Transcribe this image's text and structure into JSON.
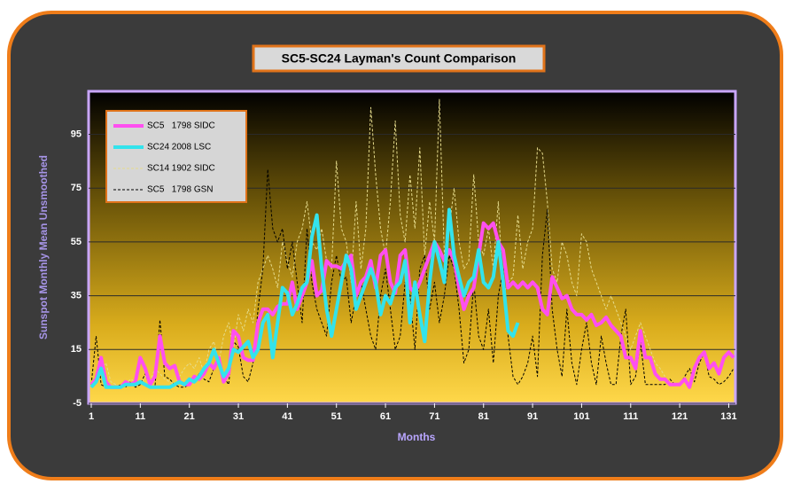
{
  "chart_data": {
    "type": "line",
    "title": "SC5-SC24 Layman's Count Comparison",
    "x_label": "Months",
    "y_label": "Sunspot Monthly Mean Unsmoothed",
    "xlim": [
      1,
      132
    ],
    "xticks": [
      1,
      11,
      21,
      31,
      41,
      51,
      61,
      71,
      81,
      91,
      101,
      111,
      121,
      131
    ],
    "ylim": [
      -5,
      111
    ],
    "yticks": [
      -5,
      15,
      35,
      55,
      75,
      95
    ],
    "grid": true,
    "legend_position": "upper-left",
    "x": [
      1,
      2,
      3,
      4,
      5,
      6,
      7,
      8,
      9,
      10,
      11,
      12,
      13,
      14,
      15,
      16,
      17,
      18,
      19,
      20,
      21,
      22,
      23,
      24,
      25,
      26,
      27,
      28,
      29,
      30,
      31,
      32,
      33,
      34,
      35,
      36,
      37,
      38,
      39,
      40,
      41,
      42,
      43,
      44,
      45,
      46,
      47,
      48,
      49,
      50,
      51,
      52,
      53,
      54,
      55,
      56,
      57,
      58,
      59,
      60,
      61,
      62,
      63,
      64,
      65,
      66,
      67,
      68,
      69,
      70,
      71,
      72,
      73,
      74,
      75,
      76,
      77,
      78,
      79,
      80,
      81,
      82,
      83,
      84,
      85,
      86,
      87,
      88,
      89,
      90,
      91,
      92,
      93,
      94,
      95,
      96,
      97,
      98,
      99,
      100,
      101,
      102,
      103,
      104,
      105,
      106,
      107,
      108,
      109,
      110,
      111,
      112,
      113,
      114,
      115,
      116,
      117,
      118,
      119,
      120,
      121,
      122,
      123,
      124,
      125,
      126,
      127,
      128,
      129,
      130,
      131,
      132
    ],
    "series": [
      {
        "name": "SC5   1798 SIDC",
        "color": "#ff4ff0",
        "width": 4,
        "style": "solid",
        "values": [
          2,
          4,
          12,
          3,
          1,
          1,
          1,
          3,
          2,
          3,
          12,
          8,
          2,
          5,
          20,
          10,
          8,
          9,
          3,
          2,
          2,
          5,
          4,
          6,
          10,
          8,
          12,
          3,
          6,
          22,
          20,
          12,
          11,
          11,
          25,
          30,
          30,
          28,
          31,
          32,
          32,
          40,
          30,
          35,
          40,
          48,
          35,
          37,
          48,
          46,
          46,
          45,
          48,
          50,
          35,
          40,
          42,
          48,
          38,
          50,
          52,
          40,
          36,
          50,
          52,
          38,
          36,
          40,
          45,
          50,
          55,
          52,
          48,
          52,
          48,
          38,
          30,
          35,
          38,
          50,
          62,
          60,
          62,
          55,
          52,
          38,
          40,
          38,
          40,
          38,
          40,
          38,
          30,
          28,
          42,
          38,
          34,
          35,
          30,
          28,
          28,
          26,
          28,
          24,
          25,
          27,
          24,
          22,
          20,
          12,
          12,
          8,
          22,
          12,
          12,
          6,
          4,
          4,
          2,
          2,
          2,
          4,
          1,
          8,
          12,
          14,
          8,
          10,
          6,
          12,
          14,
          12
        ]
      },
      {
        "name": "SC24 2008 LSC",
        "color": "#33e3ec",
        "width": 4,
        "style": "solid",
        "values": [
          1,
          3,
          8,
          1,
          1,
          1,
          1,
          2,
          2,
          2,
          3,
          2,
          1,
          1,
          1,
          1,
          1,
          2,
          3,
          2,
          4,
          3,
          5,
          8,
          10,
          15,
          10,
          5,
          8,
          15,
          14,
          16,
          18,
          12,
          15,
          25,
          28,
          12,
          25,
          38,
          36,
          28,
          32,
          38,
          40,
          57,
          65,
          45,
          30,
          20,
          30,
          40,
          50,
          45,
          30,
          35,
          40,
          45,
          40,
          28,
          35,
          32,
          38,
          40,
          48,
          25,
          40,
          28,
          18,
          40,
          55,
          48,
          40,
          67,
          50,
          42,
          35,
          40,
          42,
          52,
          40,
          38,
          42,
          55,
          40,
          22,
          20,
          25,
          null,
          null,
          null,
          null,
          null,
          null,
          null,
          null,
          null,
          null,
          null,
          null,
          null,
          null,
          null,
          null,
          null,
          null,
          null,
          null,
          null,
          null,
          null,
          null,
          null,
          null,
          null,
          null,
          null,
          null,
          null,
          null,
          null,
          null,
          null,
          null,
          null,
          null,
          null,
          null,
          null,
          null,
          null,
          null
        ]
      },
      {
        "name": "SC14 1902 SIDC",
        "color": "#e6dc8c",
        "width": 1,
        "style": "dotted",
        "values": [
          2,
          5,
          8,
          10,
          3,
          2,
          1,
          2,
          4,
          3,
          2,
          5,
          3,
          8,
          6,
          4,
          3,
          2,
          5,
          8,
          10,
          8,
          12,
          6,
          15,
          18,
          10,
          20,
          25,
          15,
          28,
          22,
          30,
          25,
          40,
          45,
          50,
          45,
          38,
          55,
          48,
          42,
          55,
          60,
          70,
          55,
          52,
          60,
          48,
          45,
          85,
          60,
          55,
          40,
          70,
          45,
          60,
          105,
          80,
          60,
          50,
          70,
          100,
          65,
          55,
          80,
          60,
          90,
          50,
          70,
          55,
          108,
          50,
          60,
          75,
          55,
          45,
          48,
          80,
          55,
          50,
          60,
          45,
          70,
          35,
          40,
          42,
          65,
          45,
          55,
          60,
          90,
          88,
          70,
          45,
          40,
          55,
          50,
          40,
          35,
          58,
          55,
          45,
          40,
          35,
          30,
          35,
          30,
          25,
          20,
          15,
          20,
          25,
          20,
          15,
          10,
          8,
          5,
          null,
          null,
          null,
          null,
          null,
          null,
          null,
          null,
          null,
          null,
          null,
          null,
          null,
          null
        ]
      },
      {
        "name": "SC5   1798 GSN",
        "color": "#000000",
        "width": 1,
        "style": "dotted",
        "values": [
          2,
          20,
          2,
          1,
          1,
          1,
          2,
          1,
          3,
          1,
          2,
          6,
          1,
          1,
          26,
          5,
          4,
          2,
          1,
          1,
          2,
          3,
          6,
          4,
          3,
          8,
          12,
          5,
          2,
          18,
          16,
          5,
          3,
          10,
          30,
          45,
          82,
          60,
          55,
          60,
          45,
          55,
          40,
          25,
          60,
          40,
          30,
          25,
          20,
          40,
          50,
          40,
          42,
          25,
          35,
          40,
          30,
          20,
          15,
          35,
          45,
          30,
          15,
          20,
          40,
          35,
          15,
          45,
          50,
          30,
          40,
          25,
          35,
          50,
          45,
          30,
          10,
          15,
          40,
          20,
          15,
          30,
          10,
          35,
          45,
          20,
          5,
          2,
          5,
          10,
          20,
          5,
          50,
          67,
          30,
          15,
          5,
          30,
          10,
          2,
          15,
          25,
          10,
          2,
          20,
          10,
          2,
          2,
          20,
          30,
          2,
          5,
          18,
          2,
          2,
          2,
          2,
          2,
          4,
          2,
          2,
          5,
          8,
          3,
          10,
          14,
          5,
          4,
          2,
          3,
          5,
          8
        ]
      }
    ]
  }
}
